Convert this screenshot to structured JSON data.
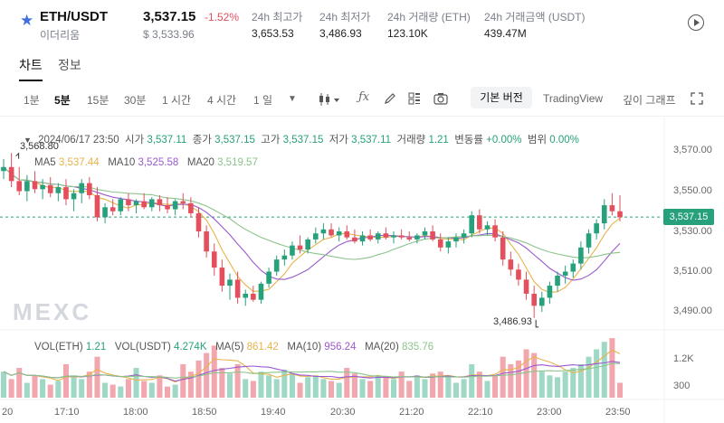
{
  "header": {
    "pair": "ETH/USDT",
    "pair_sub": "이더리움",
    "price": "3,537.15",
    "change": "-1.52%",
    "price_usd": "$ 3,533.96",
    "stats": [
      {
        "label": "24h 최고가",
        "value": "3,653.53"
      },
      {
        "label": "24h 최저가",
        "value": "3,486.93"
      },
      {
        "label": "24h 거래량 (ETH)",
        "value": "123.10K"
      },
      {
        "label": "24h 거래금액 (USDT)",
        "value": "439.47M"
      }
    ]
  },
  "tabs": [
    "차트",
    "정보"
  ],
  "toolbar": {
    "intervals": [
      "1분",
      "5분",
      "15분",
      "30분",
      "1 시간",
      "4 시간",
      "1 일"
    ],
    "active_interval": "5분",
    "version_button": "기본 버전",
    "tradingview": "TradingView",
    "depth_chart": "깊이 그래프"
  },
  "candle_info": {
    "datetime": "2024/06/17 23:50",
    "open_label": "시가",
    "open": "3,537.11",
    "close_label": "종가",
    "close": "3,537.15",
    "high_label": "고가",
    "high": "3,537.15",
    "low_label": "저가",
    "low": "3,537.11",
    "volume_label": "거래량",
    "volume": "1.21",
    "change_label": "변동률",
    "change": "+0.00%",
    "range_label": "범위",
    "range": "0.00%"
  },
  "ma": {
    "ma5_label": "MA5",
    "ma5": "3,537.44",
    "ma10_label": "MA10",
    "ma10": "3,525.58",
    "ma20_label": "MA20",
    "ma20": "3,519.57"
  },
  "vol": {
    "eth_label": "VOL(ETH)",
    "eth": "1.21",
    "usdt_label": "VOL(USDT)",
    "usdt": "4.274K",
    "ma5_label": "MA(5)",
    "ma5": "861.42",
    "ma10_label": "MA(10)",
    "ma10": "956.24",
    "ma20_label": "MA(20)",
    "ma20": "835.76"
  },
  "colors": {
    "up": "#26a17b",
    "down": "#e34f5c",
    "ma5": "#e8b34a",
    "ma10": "#9b59d0",
    "ma20": "#8bc48a",
    "accent": "#3f6fe0"
  },
  "price_axis": [
    "3,570.00",
    "3,550.00",
    "3,530.00",
    "3,510.00",
    "3,490.00"
  ],
  "last_price_tag": "3,537.15",
  "vol_axis": [
    "1.2K",
    "300"
  ],
  "time_axis": [
    "20",
    "17:10",
    "18:00",
    "18:50",
    "19:40",
    "20:30",
    "21:20",
    "22:10",
    "23:00",
    "23:50"
  ],
  "high_marker": "3,568.80",
  "low_marker": "3,486.93",
  "watermark": "MEXC",
  "chart_data": {
    "type": "candlestick",
    "x_start": "16:40",
    "interval": "5분",
    "ylim": [
      3480,
      3580
    ],
    "candles": [
      [
        3560,
        3566,
        3556,
        3562
      ],
      [
        3562,
        3569,
        3552,
        3555
      ],
      [
        3555,
        3562,
        3548,
        3550
      ],
      [
        3550,
        3558,
        3545,
        3555
      ],
      [
        3555,
        3560,
        3549,
        3551
      ],
      [
        3551,
        3556,
        3546,
        3553
      ],
      [
        3553,
        3557,
        3547,
        3549
      ],
      [
        3549,
        3554,
        3545,
        3552
      ],
      [
        3552,
        3556,
        3543,
        3546
      ],
      [
        3546,
        3551,
        3540,
        3549
      ],
      [
        3549,
        3556,
        3544,
        3554
      ],
      [
        3554,
        3557,
        3546,
        3548
      ],
      [
        3548,
        3552,
        3535,
        3537
      ],
      [
        3537,
        3544,
        3534,
        3542
      ],
      [
        3542,
        3546,
        3538,
        3540
      ],
      [
        3540,
        3547,
        3538,
        3546
      ],
      [
        3546,
        3549,
        3540,
        3543
      ],
      [
        3543,
        3546,
        3539,
        3545
      ],
      [
        3545,
        3549,
        3541,
        3542
      ],
      [
        3542,
        3547,
        3540,
        3546
      ],
      [
        3546,
        3548,
        3540,
        3543
      ],
      [
        3543,
        3547,
        3539,
        3541
      ],
      [
        3541,
        3546,
        3538,
        3545
      ],
      [
        3545,
        3549,
        3541,
        3544
      ],
      [
        3544,
        3547,
        3537,
        3539
      ],
      [
        3539,
        3542,
        3527,
        3530
      ],
      [
        3530,
        3533,
        3517,
        3520
      ],
      [
        3520,
        3524,
        3508,
        3512
      ],
      [
        3512,
        3516,
        3500,
        3503
      ],
      [
        3503,
        3509,
        3496,
        3506
      ],
      [
        3506,
        3510,
        3494,
        3497
      ],
      [
        3497,
        3501,
        3493,
        3499
      ],
      [
        3499,
        3503,
        3495,
        3496
      ],
      [
        3496,
        3505,
        3494,
        3504
      ],
      [
        3504,
        3512,
        3502,
        3510
      ],
      [
        3510,
        3518,
        3508,
        3516
      ],
      [
        3516,
        3521,
        3513,
        3518
      ],
      [
        3518,
        3525,
        3516,
        3523
      ],
      [
        3523,
        3528,
        3519,
        3521
      ],
      [
        3521,
        3527,
        3519,
        3526
      ],
      [
        3526,
        3532,
        3524,
        3529
      ],
      [
        3529,
        3534,
        3526,
        3531
      ],
      [
        3531,
        3534,
        3527,
        3528
      ],
      [
        3528,
        3532,
        3525,
        3530
      ],
      [
        3530,
        3533,
        3526,
        3527
      ],
      [
        3527,
        3531,
        3524,
        3525
      ],
      [
        3525,
        3530,
        3523,
        3528
      ],
      [
        3528,
        3531,
        3525,
        3526
      ],
      [
        3526,
        3530,
        3524,
        3529
      ],
      [
        3529,
        3532,
        3526,
        3527
      ],
      [
        3527,
        3530,
        3524,
        3528
      ],
      [
        3528,
        3531,
        3526,
        3527
      ],
      [
        3527,
        3530,
        3525,
        3526
      ],
      [
        3526,
        3529,
        3524,
        3528
      ],
      [
        3528,
        3532,
        3526,
        3530
      ],
      [
        3530,
        3533,
        3525,
        3526
      ],
      [
        3526,
        3529,
        3520,
        3522
      ],
      [
        3522,
        3527,
        3519,
        3525
      ],
      [
        3525,
        3529,
        3522,
        3527
      ],
      [
        3527,
        3531,
        3524,
        3529
      ],
      [
        3529,
        3540,
        3527,
        3538
      ],
      [
        3538,
        3541,
        3529,
        3531
      ],
      [
        3531,
        3535,
        3528,
        3533
      ],
      [
        3533,
        3536,
        3525,
        3527
      ],
      [
        3527,
        3530,
        3513,
        3516
      ],
      [
        3516,
        3520,
        3508,
        3511
      ],
      [
        3511,
        3514,
        3503,
        3506
      ],
      [
        3506,
        3510,
        3496,
        3499
      ],
      [
        3499,
        3503,
        3487,
        3493
      ],
      [
        3493,
        3500,
        3490,
        3497
      ],
      [
        3497,
        3505,
        3494,
        3503
      ],
      [
        3503,
        3510,
        3500,
        3508
      ],
      [
        3508,
        3513,
        3504,
        3510
      ],
      [
        3510,
        3516,
        3507,
        3514
      ],
      [
        3514,
        3525,
        3511,
        3522
      ],
      [
        3522,
        3531,
        3519,
        3529
      ],
      [
        3529,
        3536,
        3526,
        3534
      ],
      [
        3534,
        3546,
        3531,
        3543
      ],
      [
        3543,
        3549,
        3538,
        3540
      ],
      [
        3540,
        3548,
        3535,
        3537
      ]
    ],
    "volume": [
      700,
      500,
      800,
      400,
      600,
      500,
      350,
      450,
      900,
      600,
      500,
      700,
      1100,
      400,
      350,
      300,
      500,
      800,
      450,
      400,
      600,
      300,
      350,
      900,
      700,
      1000,
      1200,
      1400,
      800,
      650,
      900,
      500,
      450,
      700,
      600,
      500,
      750,
      650,
      400,
      550,
      600,
      500,
      450,
      400,
      800,
      650,
      500,
      450,
      600,
      550,
      500,
      700,
      450,
      600,
      500,
      650,
      700,
      550,
      400,
      500,
      900,
      700,
      450,
      600,
      1100,
      900,
      1000,
      1300,
      1200,
      700,
      600,
      550,
      700,
      800,
      900,
      1100,
      1300,
      1500,
      1600,
      400
    ]
  }
}
